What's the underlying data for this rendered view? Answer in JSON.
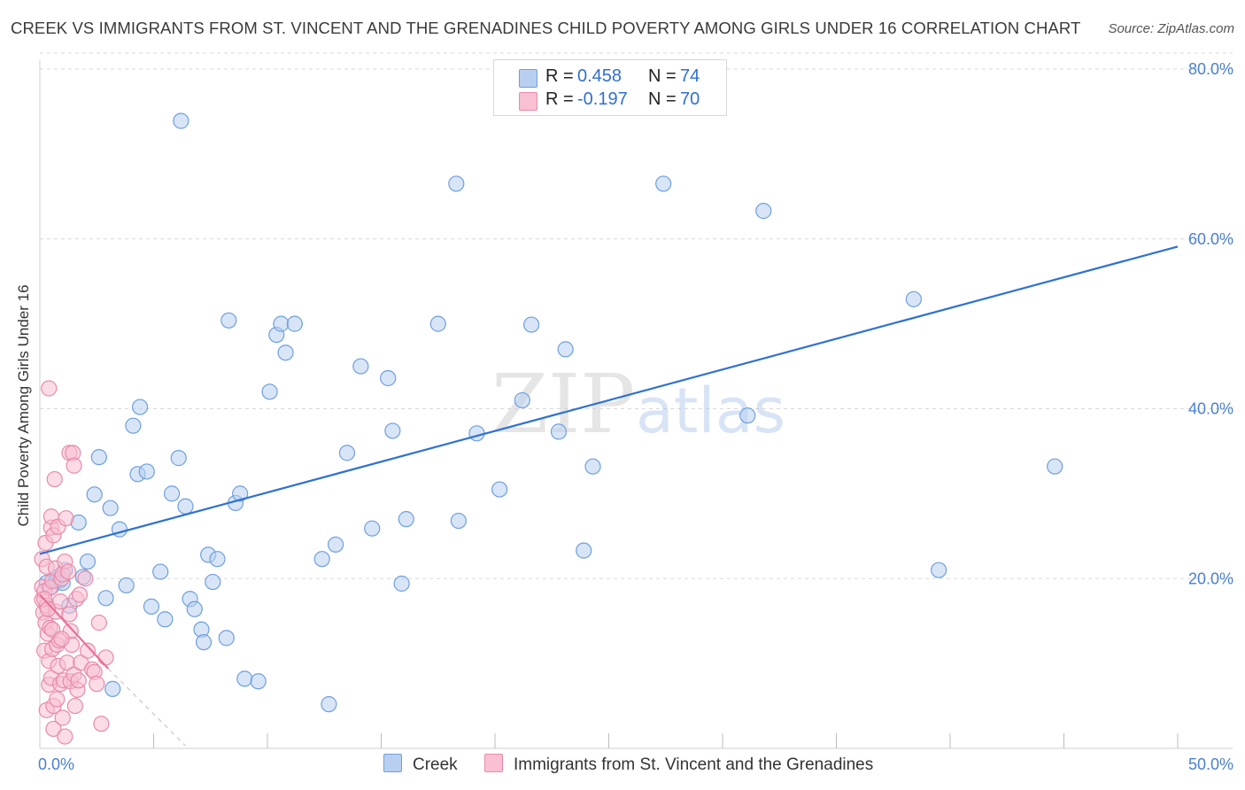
{
  "title": "CREEK VS IMMIGRANTS FROM ST. VINCENT AND THE GRENADINES CHILD POVERTY AMONG GIRLS UNDER 16 CORRELATION CHART",
  "source": "Source: ZipAtlas.com",
  "watermark": {
    "zip": "ZIP",
    "atlas": "atlas"
  },
  "colors": {
    "creek_fill": "#b8d0f0",
    "creek_stroke": "#6e9fdc",
    "creek_line": "#2f72d0",
    "imm_fill": "#f8c0d2",
    "imm_stroke": "#e88aaa",
    "imm_line": "#e8709a",
    "grid": "#d8d8d8",
    "tick_text": "#4a7fd0"
  },
  "legend": {
    "rows": [
      {
        "r_label": "R =",
        "r_value": "0.458",
        "n_label": "N =",
        "n_value": "74"
      },
      {
        "r_label": "R =",
        "r_value": "-0.197",
        "n_label": "N =",
        "n_value": "70"
      }
    ]
  },
  "bottom_legend": {
    "creek": "Creek",
    "immigrants": "Immigrants from St. Vincent and the Grenadines"
  },
  "chart_data": {
    "type": "scatter",
    "title": "CREEK VS IMMIGRANTS FROM ST. VINCENT AND THE GRENADINES CHILD POVERTY AMONG GIRLS UNDER 16 CORRELATION CHART",
    "xlabel": "",
    "ylabel": "Child Poverty Among Girls Under 16",
    "xlim": [
      0,
      50
    ],
    "ylim": [
      0,
      80
    ],
    "x_tick_labels": [
      "0.0%",
      "50.0%"
    ],
    "y_ticks": [
      20,
      40,
      60,
      80
    ],
    "y_tick_labels": [
      "20.0%",
      "40.0%",
      "60.0%",
      "80.0%"
    ],
    "grid": true,
    "series": [
      {
        "name": "Creek",
        "r": 0.458,
        "n": 74,
        "trend": {
          "x": [
            0,
            50
          ],
          "y": [
            22.9,
            59.1
          ]
        },
        "points": [
          [
            0.3,
            19.5
          ],
          [
            0.5,
            19.0
          ],
          [
            0.7,
            19.8
          ],
          [
            0.8,
            20.2
          ],
          [
            0.9,
            19.8
          ],
          [
            1.0,
            19.5
          ],
          [
            1.1,
            21.0
          ],
          [
            1.3,
            16.8
          ],
          [
            1.7,
            26.6
          ],
          [
            1.9,
            20.2
          ],
          [
            2.1,
            22.0
          ],
          [
            2.4,
            29.9
          ],
          [
            2.6,
            34.3
          ],
          [
            2.9,
            17.7
          ],
          [
            3.1,
            28.3
          ],
          [
            3.2,
            7.0
          ],
          [
            3.5,
            25.8
          ],
          [
            3.8,
            19.2
          ],
          [
            4.1,
            38.0
          ],
          [
            4.3,
            32.3
          ],
          [
            4.4,
            40.2
          ],
          [
            4.7,
            32.6
          ],
          [
            4.9,
            16.7
          ],
          [
            5.3,
            20.8
          ],
          [
            5.5,
            15.2
          ],
          [
            5.8,
            30.0
          ],
          [
            6.1,
            34.2
          ],
          [
            6.2,
            73.9
          ],
          [
            6.4,
            28.5
          ],
          [
            6.6,
            17.6
          ],
          [
            6.8,
            16.4
          ],
          [
            7.1,
            14.0
          ],
          [
            7.2,
            12.5
          ],
          [
            7.4,
            22.8
          ],
          [
            7.6,
            19.6
          ],
          [
            7.8,
            22.3
          ],
          [
            8.2,
            13.0
          ],
          [
            8.3,
            50.4
          ],
          [
            8.6,
            28.9
          ],
          [
            8.8,
            30.0
          ],
          [
            9.0,
            8.2
          ],
          [
            9.6,
            7.9
          ],
          [
            10.1,
            42.0
          ],
          [
            10.4,
            48.7
          ],
          [
            10.6,
            50.0
          ],
          [
            10.8,
            46.6
          ],
          [
            11.2,
            50.0
          ],
          [
            12.4,
            22.3
          ],
          [
            12.7,
            5.2
          ],
          [
            13.0,
            24.0
          ],
          [
            13.5,
            34.8
          ],
          [
            14.1,
            45.0
          ],
          [
            14.6,
            25.9
          ],
          [
            15.3,
            43.6
          ],
          [
            15.5,
            37.4
          ],
          [
            15.9,
            19.4
          ],
          [
            16.1,
            27.0
          ],
          [
            17.5,
            50.0
          ],
          [
            18.3,
            66.5
          ],
          [
            18.4,
            26.8
          ],
          [
            19.2,
            37.1
          ],
          [
            20.2,
            30.5
          ],
          [
            21.2,
            41.0
          ],
          [
            21.6,
            49.9
          ],
          [
            22.8,
            37.3
          ],
          [
            23.1,
            47.0
          ],
          [
            23.9,
            23.3
          ],
          [
            24.3,
            33.2
          ],
          [
            27.4,
            66.5
          ],
          [
            31.8,
            63.3
          ],
          [
            31.1,
            39.2
          ],
          [
            38.4,
            52.9
          ],
          [
            39.5,
            21.0
          ],
          [
            44.6,
            33.2
          ]
        ]
      },
      {
        "name": "Immigrants from St. Vincent and the Grenadines",
        "r": -0.197,
        "n": 70,
        "trend": {
          "x": [
            0,
            3.0
          ],
          "y": [
            18.1,
            9.4
          ]
        },
        "trend_dashed": {
          "x": [
            3.0,
            6.4
          ],
          "y": [
            9.4,
            0.3
          ]
        },
        "points": [
          [
            0.1,
            22.3
          ],
          [
            0.1,
            19.0
          ],
          [
            0.1,
            17.5
          ],
          [
            0.15,
            16.0
          ],
          [
            0.2,
            11.5
          ],
          [
            0.2,
            18.5
          ],
          [
            0.25,
            14.8
          ],
          [
            0.25,
            24.2
          ],
          [
            0.3,
            4.5
          ],
          [
            0.3,
            21.4
          ],
          [
            0.3,
            16.8
          ],
          [
            0.35,
            13.5
          ],
          [
            0.4,
            10.3
          ],
          [
            0.4,
            7.5
          ],
          [
            0.4,
            42.4
          ],
          [
            0.45,
            18.9
          ],
          [
            0.45,
            14.2
          ],
          [
            0.5,
            26.0
          ],
          [
            0.5,
            27.3
          ],
          [
            0.5,
            8.3
          ],
          [
            0.55,
            11.7
          ],
          [
            0.55,
            19.7
          ],
          [
            0.6,
            5.0
          ],
          [
            0.6,
            25.1
          ],
          [
            0.6,
            2.3
          ],
          [
            0.65,
            31.7
          ],
          [
            0.7,
            16.1
          ],
          [
            0.7,
            21.2
          ],
          [
            0.75,
            12.2
          ],
          [
            0.75,
            5.8
          ],
          [
            0.8,
            9.7
          ],
          [
            0.8,
            26.1
          ],
          [
            0.85,
            12.7
          ],
          [
            0.9,
            17.3
          ],
          [
            0.9,
            7.6
          ],
          [
            0.95,
            20.0
          ],
          [
            1.0,
            20.5
          ],
          [
            1.0,
            3.6
          ],
          [
            1.05,
            8.0
          ],
          [
            1.1,
            1.4
          ],
          [
            1.1,
            22.0
          ],
          [
            1.15,
            27.1
          ],
          [
            1.2,
            10.1
          ],
          [
            1.25,
            20.8
          ],
          [
            1.3,
            34.8
          ],
          [
            1.35,
            13.8
          ],
          [
            1.35,
            7.9
          ],
          [
            1.4,
            12.2
          ],
          [
            1.45,
            34.8
          ],
          [
            1.5,
            8.7
          ],
          [
            1.5,
            33.3
          ],
          [
            1.55,
            5.0
          ],
          [
            1.6,
            17.6
          ],
          [
            1.65,
            6.9
          ],
          [
            1.7,
            8.0
          ],
          [
            1.75,
            18.1
          ],
          [
            1.8,
            10.1
          ],
          [
            2.0,
            20.0
          ],
          [
            2.1,
            11.5
          ],
          [
            2.3,
            9.3
          ],
          [
            2.4,
            9.0
          ],
          [
            2.5,
            7.6
          ],
          [
            2.6,
            14.8
          ],
          [
            2.7,
            2.9
          ],
          [
            2.9,
            10.7
          ],
          [
            0.2,
            17.6
          ],
          [
            0.35,
            16.4
          ],
          [
            0.55,
            14.0
          ],
          [
            0.95,
            12.9
          ],
          [
            1.3,
            15.8
          ]
        ]
      }
    ]
  }
}
